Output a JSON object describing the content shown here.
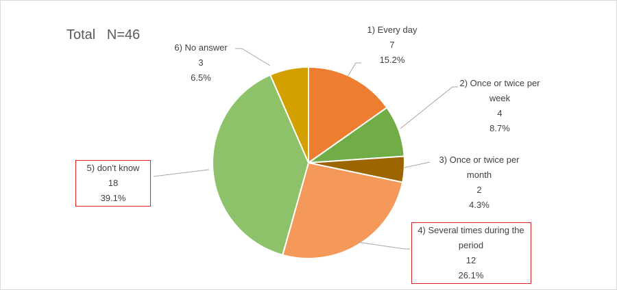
{
  "chart_data": {
    "type": "pie",
    "title": "Total   N=46",
    "categories": [
      "1) Every day",
      "2) Once or twice per week",
      "3) Once or twice per month",
      "4) Several times during the period",
      "5) don't know",
      "6) No answer"
    ],
    "values": [
      7,
      4,
      2,
      12,
      18,
      3
    ],
    "percent_values": [
      15.2,
      8.7,
      4.3,
      26.1,
      39.1,
      6.5
    ],
    "percent_labels": [
      "15.2%",
      "8.7%",
      "4.3%",
      "26.1%",
      "39.1%",
      "6.5%"
    ],
    "colors": [
      "#ed7d31",
      "#70ad47",
      "#9c6500",
      "#f4995a",
      "#8dc26a",
      "#d4a000"
    ],
    "highlight": [
      false,
      false,
      false,
      true,
      true,
      false
    ],
    "highlight_color": "#e02020"
  }
}
